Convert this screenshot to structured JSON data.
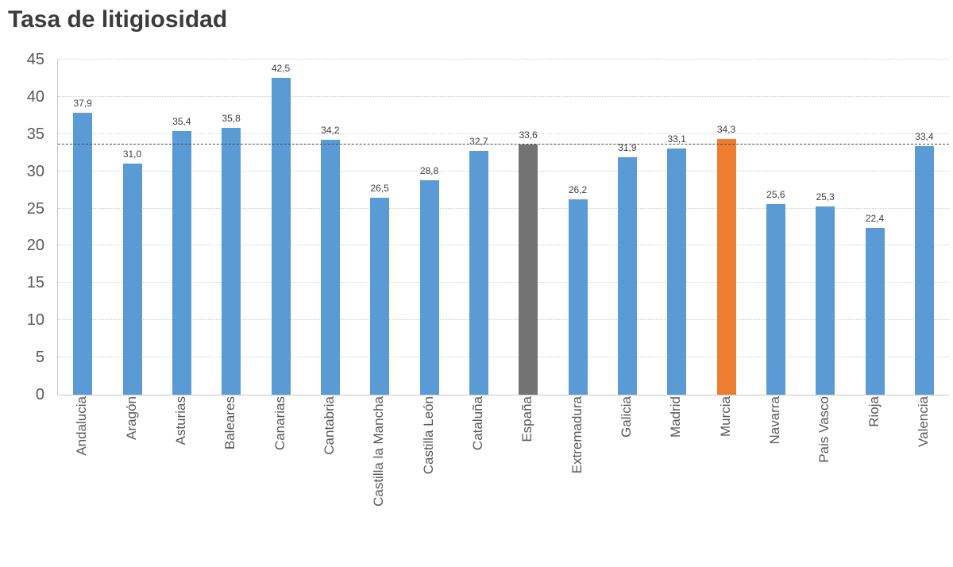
{
  "chart_data": {
    "type": "bar",
    "title": "Tasa de litigiosidad",
    "xlabel": "",
    "ylabel": "",
    "ylim": [
      0,
      45
    ],
    "yticks": [
      0,
      5,
      10,
      15,
      20,
      25,
      30,
      35,
      40,
      45
    ],
    "grid": true,
    "legend": false,
    "reference_line": {
      "value": 33.6,
      "style": "dashed",
      "color": "#4a4a4a"
    },
    "categories": [
      "Andalucia",
      "Aragón",
      "Asturias",
      "Baleares",
      "Canarias",
      "Cantabria",
      "Castilla la Mancha",
      "Castilla León",
      "Cataluña",
      "España",
      "Extremadura",
      "Galicia",
      "Madrid",
      "Murcia",
      "Navarra",
      "Pais Vasco",
      "Rioja",
      "Valencia"
    ],
    "values": [
      37.9,
      31.0,
      35.4,
      35.8,
      42.5,
      34.2,
      26.5,
      28.8,
      32.7,
      33.6,
      26.2,
      31.9,
      33.1,
      34.3,
      25.6,
      25.3,
      22.4,
      33.4
    ],
    "value_labels": [
      "37,9",
      "31,0",
      "35,4",
      "35,8",
      "42,5",
      "34,2",
      "26,5",
      "28,8",
      "32,7",
      "33,6",
      "26,2",
      "31,9",
      "33,1",
      "34,3",
      "25,6",
      "25,3",
      "22,4",
      "33,4"
    ],
    "bar_colors": [
      "#5B9BD5",
      "#5B9BD5",
      "#5B9BD5",
      "#5B9BD5",
      "#5B9BD5",
      "#5B9BD5",
      "#5B9BD5",
      "#5B9BD5",
      "#5B9BD5",
      "#737373",
      "#5B9BD5",
      "#5B9BD5",
      "#5B9BD5",
      "#ED7D31",
      "#5B9BD5",
      "#5B9BD5",
      "#5B9BD5",
      "#5B9BD5"
    ],
    "accent_colors": {
      "default_bar": "#5B9BD5",
      "espana_bar": "#737373",
      "murcia_bar": "#ED7D31"
    }
  }
}
